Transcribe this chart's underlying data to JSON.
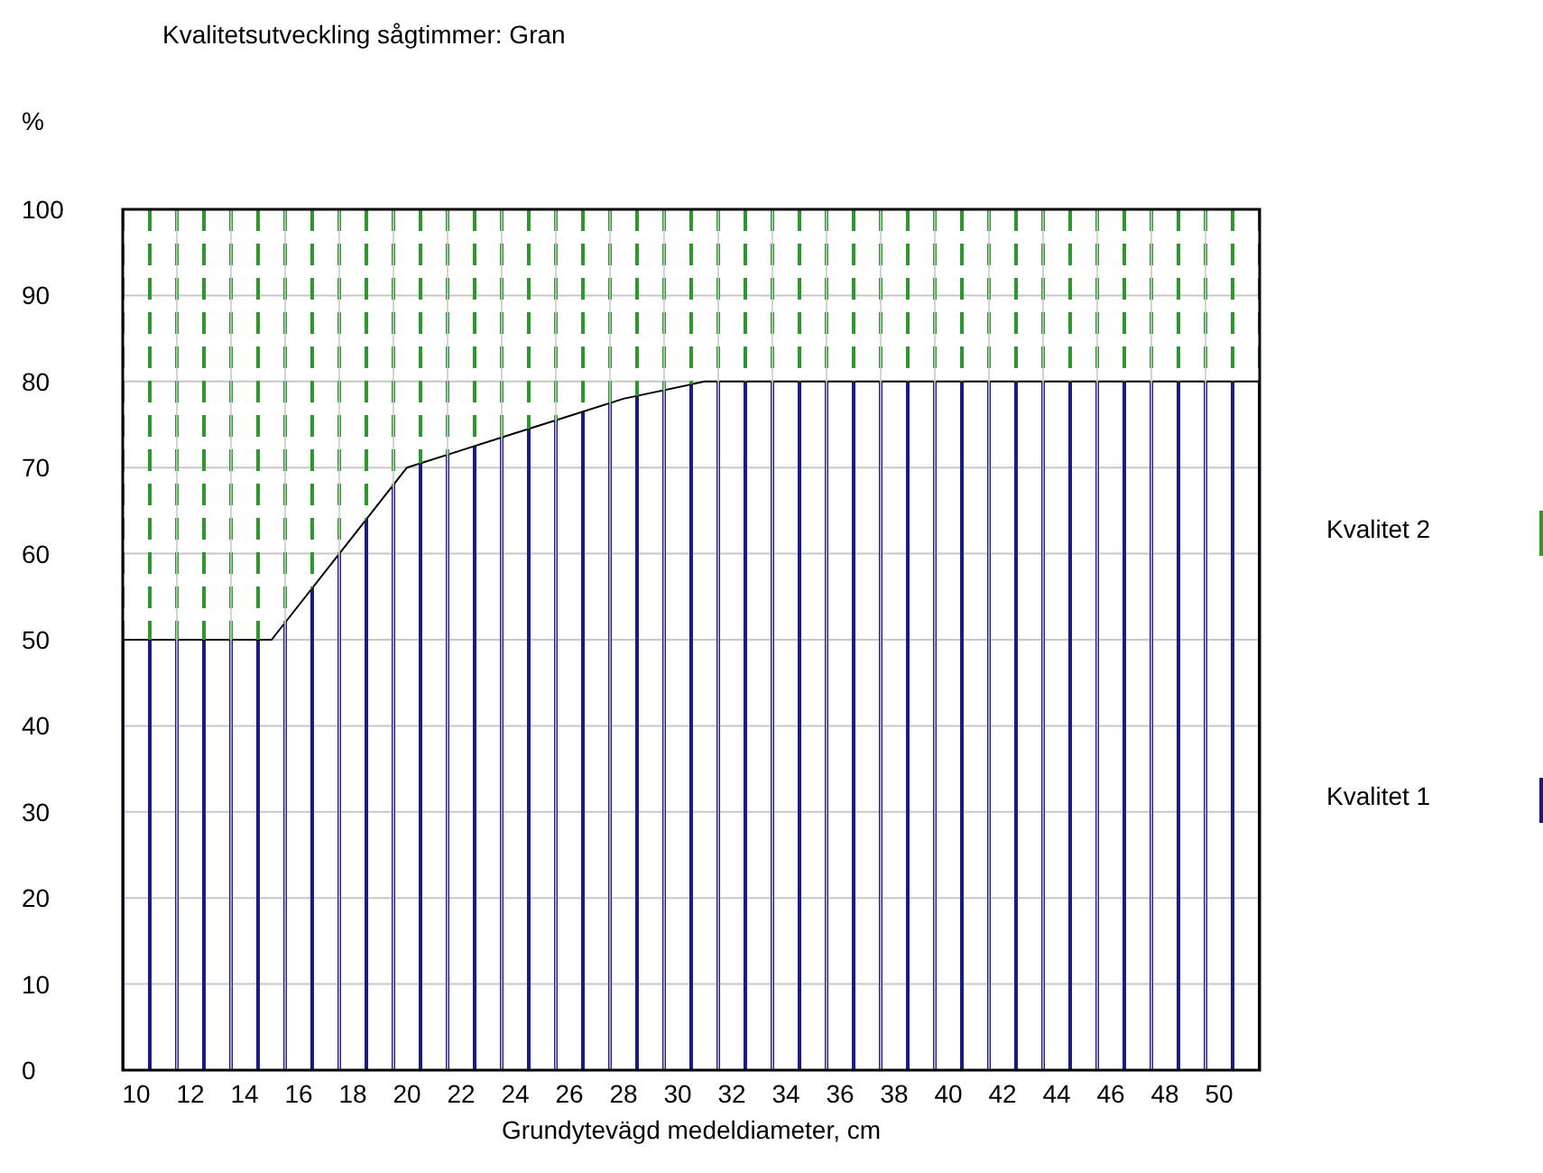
{
  "chart_data": {
    "type": "area",
    "title": "Kvalitetsutveckling sågtimmer: Gran",
    "ylabel": "%",
    "xlabel": "Grundytevägd medeldiameter, cm",
    "stacked": true,
    "x": [
      9.5,
      15,
      18,
      20,
      22,
      24,
      26,
      28,
      31,
      51.5
    ],
    "series": [
      {
        "name": "Kvalitet 1",
        "color": "#1a1a8c",
        "values": [
          50,
          50,
          62,
          70,
          72,
          74,
          76,
          78,
          80,
          80
        ]
      },
      {
        "name": "Kvalitet 2",
        "color": "#2a9a2a",
        "values": [
          50,
          50,
          38,
          30,
          28,
          26,
          24,
          22,
          20,
          20
        ]
      }
    ],
    "xlim": [
      9.5,
      51.5
    ],
    "xticks": [
      10,
      12,
      14,
      16,
      18,
      20,
      22,
      24,
      26,
      28,
      30,
      32,
      34,
      36,
      38,
      40,
      42,
      44,
      46,
      48,
      50
    ],
    "ylim": [
      0,
      100
    ],
    "yticks": [
      0,
      10,
      20,
      30,
      40,
      50,
      60,
      70,
      80,
      90,
      100
    ],
    "grid": true,
    "legend": "right"
  }
}
